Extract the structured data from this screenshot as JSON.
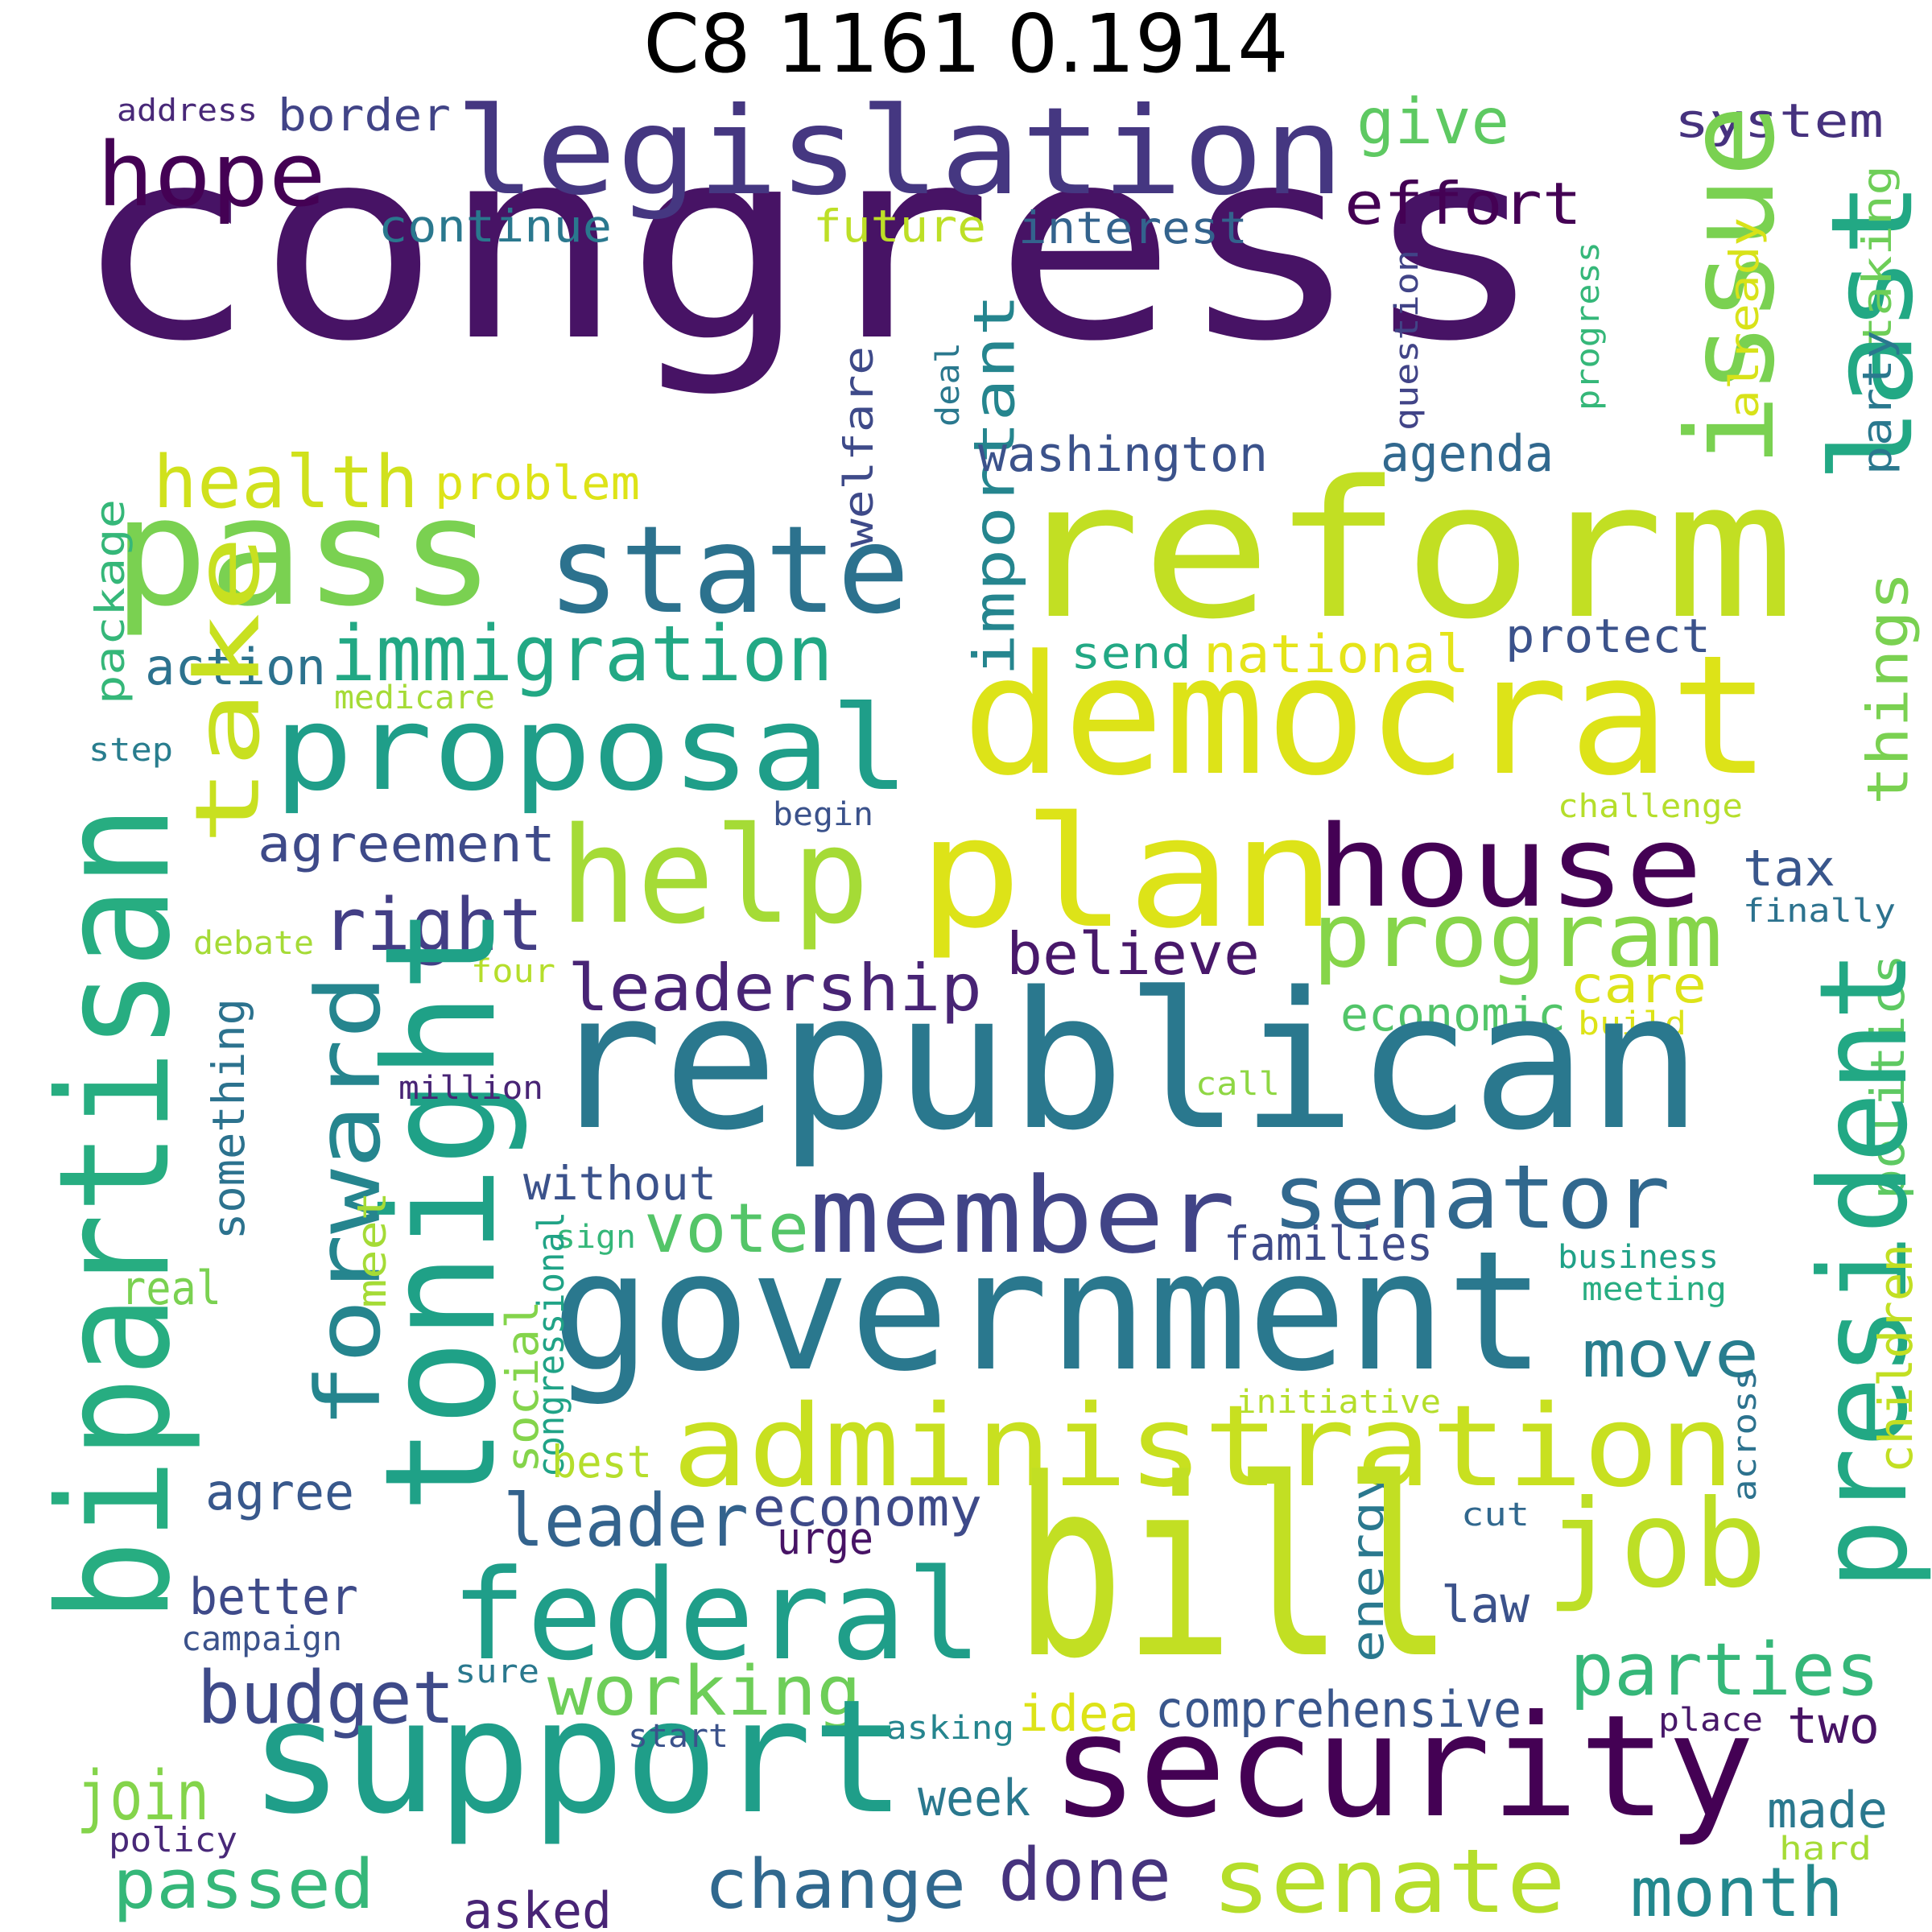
{
  "title": "C8 1161 0.1914",
  "colormap": "viridis",
  "background": "#ffffff",
  "words": [
    {
      "text": "congress",
      "color": "#471365"
    },
    {
      "text": "legislation",
      "color": "#453781"
    },
    {
      "text": "hope",
      "color": "#440154"
    },
    {
      "text": "border",
      "color": "#414487"
    },
    {
      "text": "address",
      "color": "#482878"
    },
    {
      "text": "give",
      "color": "#5ec962"
    },
    {
      "text": "system",
      "color": "#46327e"
    },
    {
      "text": "effort",
      "color": "#440154"
    },
    {
      "text": "continue",
      "color": "#2a788e"
    },
    {
      "text": "future",
      "color": "#bddf26"
    },
    {
      "text": "interest",
      "color": "#33638d"
    },
    {
      "text": "issue",
      "color": "#7ad151"
    },
    {
      "text": "last",
      "color": "#22a884"
    },
    {
      "text": "taking",
      "color": "#6ece58"
    },
    {
      "text": "already",
      "color": "#d8e219"
    },
    {
      "text": "progress",
      "color": "#35b779"
    },
    {
      "text": "question",
      "color": "#414487"
    },
    {
      "text": "party",
      "color": "#2a788e"
    },
    {
      "text": "deal",
      "color": "#2a788e"
    },
    {
      "text": "welfare",
      "color": "#3e4a89"
    },
    {
      "text": "important",
      "color": "#25858e"
    },
    {
      "text": "health",
      "color": "#d0e11c"
    },
    {
      "text": "problem",
      "color": "#dde318"
    },
    {
      "text": "washington",
      "color": "#3b528b"
    },
    {
      "text": "agenda",
      "color": "#31688e"
    },
    {
      "text": "pass",
      "color": "#7ad151"
    },
    {
      "text": "state",
      "color": "#2c728e"
    },
    {
      "text": "reform",
      "color": "#c2df23"
    },
    {
      "text": "package",
      "color": "#35b779"
    },
    {
      "text": "things",
      "color": "#7ad151"
    },
    {
      "text": "action",
      "color": "#2c728e"
    },
    {
      "text": "immigration",
      "color": "#22a884"
    },
    {
      "text": "send",
      "color": "#22a884"
    },
    {
      "text": "national",
      "color": "#e5e419"
    },
    {
      "text": "protect",
      "color": "#3b528b"
    },
    {
      "text": "medicare",
      "color": "#a5db36"
    },
    {
      "text": "democrat",
      "color": "#dde318"
    },
    {
      "text": "proposal",
      "color": "#1f9e89"
    },
    {
      "text": "take",
      "color": "#c8e020"
    },
    {
      "text": "step",
      "color": "#287d8e"
    },
    {
      "text": "begin",
      "color": "#3b528b"
    },
    {
      "text": "challenge",
      "color": "#b5de2b"
    },
    {
      "text": "plan",
      "color": "#dde318"
    },
    {
      "text": "help",
      "color": "#a5db36"
    },
    {
      "text": "house",
      "color": "#440154"
    },
    {
      "text": "agreement",
      "color": "#3e4a89"
    },
    {
      "text": "tax",
      "color": "#39568c"
    },
    {
      "text": "finally",
      "color": "#2c728e"
    },
    {
      "text": "bipartisan",
      "color": "#27ad81"
    },
    {
      "text": "right",
      "color": "#433e85"
    },
    {
      "text": "program",
      "color": "#86d549"
    },
    {
      "text": "debate",
      "color": "#a5db36"
    },
    {
      "text": "four",
      "color": "#b5de2b"
    },
    {
      "text": "leadership",
      "color": "#482475"
    },
    {
      "text": "believe",
      "color": "#48186a"
    },
    {
      "text": "care",
      "color": "#dde318"
    },
    {
      "text": "forward",
      "color": "#25858e"
    },
    {
      "text": "economic",
      "color": "#52c569"
    },
    {
      "text": "build",
      "color": "#dde318"
    },
    {
      "text": "politics",
      "color": "#5ec962"
    },
    {
      "text": "tonight",
      "color": "#1fa187"
    },
    {
      "text": "republican",
      "color": "#2a788e"
    },
    {
      "text": "something",
      "color": "#2c728e"
    },
    {
      "text": "million",
      "color": "#482475"
    },
    {
      "text": "call",
      "color": "#8fd744"
    },
    {
      "text": "president",
      "color": "#22a884"
    },
    {
      "text": "member",
      "color": "#414487"
    },
    {
      "text": "senator",
      "color": "#31688e"
    },
    {
      "text": "without",
      "color": "#3b528b"
    },
    {
      "text": "vote",
      "color": "#54c568"
    },
    {
      "text": "sign",
      "color": "#35b779"
    },
    {
      "text": "families",
      "color": "#3e4a89"
    },
    {
      "text": "business",
      "color": "#1fa187"
    },
    {
      "text": "meeting",
      "color": "#27ad81"
    },
    {
      "text": "real",
      "color": "#7ad151"
    },
    {
      "text": "meet",
      "color": "#a5db36"
    },
    {
      "text": "government",
      "color": "#2a788e"
    },
    {
      "text": "congressional",
      "color": "#20a386"
    },
    {
      "text": "move",
      "color": "#287d8e"
    },
    {
      "text": "children",
      "color": "#c2df23"
    },
    {
      "text": "social",
      "color": "#84d44b"
    },
    {
      "text": "initiative",
      "color": "#b5de2b"
    },
    {
      "text": "administration",
      "color": "#c8e020"
    },
    {
      "text": "best",
      "color": "#b5de2b"
    },
    {
      "text": "across",
      "color": "#2c728e"
    },
    {
      "text": "agree",
      "color": "#38588c"
    },
    {
      "text": "leader",
      "color": "#33638d"
    },
    {
      "text": "economy",
      "color": "#3e4a89"
    },
    {
      "text": "urge",
      "color": "#471365"
    },
    {
      "text": "cut",
      "color": "#31688e"
    },
    {
      "text": "job",
      "color": "#bddf26"
    },
    {
      "text": "energy",
      "color": "#2a788e"
    },
    {
      "text": "better",
      "color": "#3e4a89"
    },
    {
      "text": "federal",
      "color": "#1f9e89"
    },
    {
      "text": "bill",
      "color": "#c2df23"
    },
    {
      "text": "law",
      "color": "#3b528b"
    },
    {
      "text": "campaign",
      "color": "#3b528b"
    },
    {
      "text": "budget",
      "color": "#3e4a89"
    },
    {
      "text": "working",
      "color": "#6ece58"
    },
    {
      "text": "sure",
      "color": "#2a788e"
    },
    {
      "text": "parties",
      "color": "#35b779"
    },
    {
      "text": "comprehensive",
      "color": "#39568c"
    },
    {
      "text": "idea",
      "color": "#dde318"
    },
    {
      "text": "asking",
      "color": "#25858e"
    },
    {
      "text": "place",
      "color": "#48186a"
    },
    {
      "text": "two",
      "color": "#471365"
    },
    {
      "text": "support",
      "color": "#1f9e89"
    },
    {
      "text": "security",
      "color": "#440154"
    },
    {
      "text": "start",
      "color": "#3b528b"
    },
    {
      "text": "join",
      "color": "#84d44b"
    },
    {
      "text": "week",
      "color": "#2a788e"
    },
    {
      "text": "made",
      "color": "#2a788e"
    },
    {
      "text": "policy",
      "color": "#482878"
    },
    {
      "text": "hard",
      "color": "#a5db36"
    },
    {
      "text": "passed",
      "color": "#35b779"
    },
    {
      "text": "change",
      "color": "#30688e"
    },
    {
      "text": "done",
      "color": "#46337e"
    },
    {
      "text": "senate",
      "color": "#b5de2b"
    },
    {
      "text": "month",
      "color": "#23888e"
    },
    {
      "text": "asked",
      "color": "#482475"
    }
  ]
}
